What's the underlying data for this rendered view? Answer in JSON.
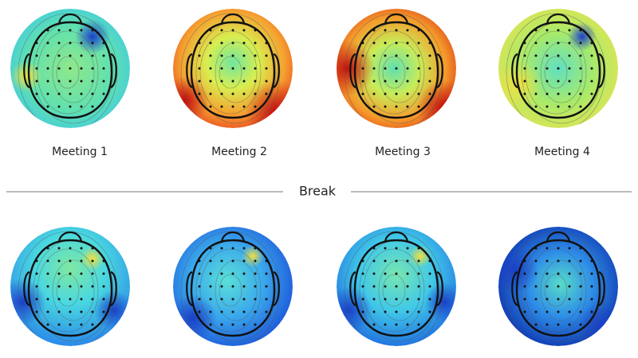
{
  "top_row": {
    "labels": [
      "Meeting 1",
      "Meeting 2",
      "Meeting 3",
      "Meeting 4"
    ]
  },
  "divider": {
    "label": "Break"
  }
}
